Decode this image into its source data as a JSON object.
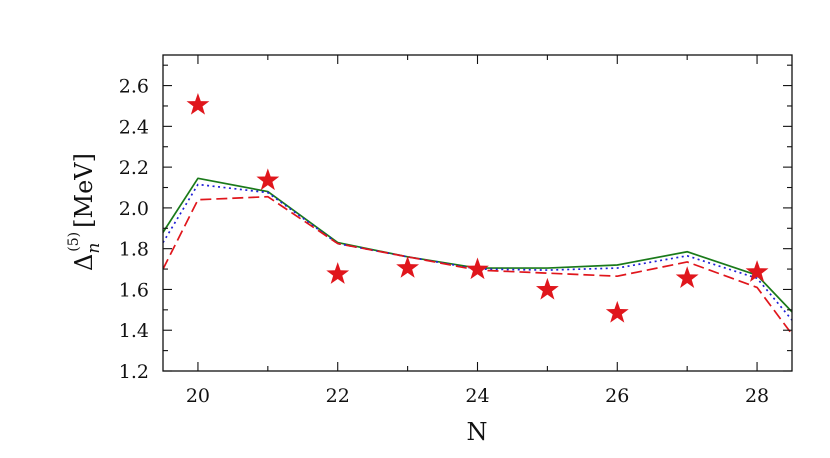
{
  "chart_data": {
    "type": "line",
    "xlabel": "N",
    "ylabel": {
      "symbol": "Δ",
      "subscript": "n",
      "superscript": "(5)",
      "unit": "[MeV]"
    },
    "xlim": [
      19.5,
      28.5
    ],
    "ylim": [
      1.2,
      2.75
    ],
    "xticks": [
      20,
      22,
      24,
      26,
      28
    ],
    "xtick_labels": [
      "20",
      "22",
      "24",
      "26",
      "28"
    ],
    "yticks": [
      1.2,
      1.4,
      1.6,
      1.8,
      2.0,
      2.2,
      2.4,
      2.6
    ],
    "ytick_labels": [
      "1.2",
      "1.4",
      "1.6",
      "1.8",
      "2.0",
      "2.2",
      "2.4",
      "2.6"
    ],
    "grid": false,
    "series": [
      {
        "style": "solid",
        "color": "#1a7a1a",
        "x": [
          19.5,
          20,
          21,
          22,
          23,
          24,
          25,
          26,
          27,
          28,
          28.5
        ],
        "y": [
          1.88,
          2.145,
          2.08,
          1.83,
          1.76,
          1.705,
          1.705,
          1.72,
          1.785,
          1.67,
          1.49
        ]
      },
      {
        "style": "dotted",
        "color": "#1f1fd6",
        "x": [
          19.5,
          20,
          21,
          22,
          23,
          24,
          25,
          26,
          27,
          28,
          28.5
        ],
        "y": [
          1.83,
          2.115,
          2.075,
          1.825,
          1.76,
          1.7,
          1.695,
          1.705,
          1.765,
          1.655,
          1.45
        ]
      },
      {
        "style": "dashed",
        "color": "#e0161c",
        "x": [
          19.5,
          20,
          21,
          22,
          23,
          24,
          25,
          26,
          27,
          28,
          28.5
        ],
        "y": [
          1.7,
          2.04,
          2.055,
          1.825,
          1.76,
          1.695,
          1.68,
          1.665,
          1.735,
          1.61,
          1.38
        ]
      },
      {
        "style": "markers",
        "marker": "star",
        "color": "#e0161c",
        "x": [
          20,
          21,
          22,
          23,
          24,
          25,
          26,
          27,
          28
        ],
        "y": [
          2.505,
          2.135,
          1.675,
          1.705,
          1.698,
          1.598,
          1.485,
          1.655,
          1.685
        ]
      }
    ]
  }
}
